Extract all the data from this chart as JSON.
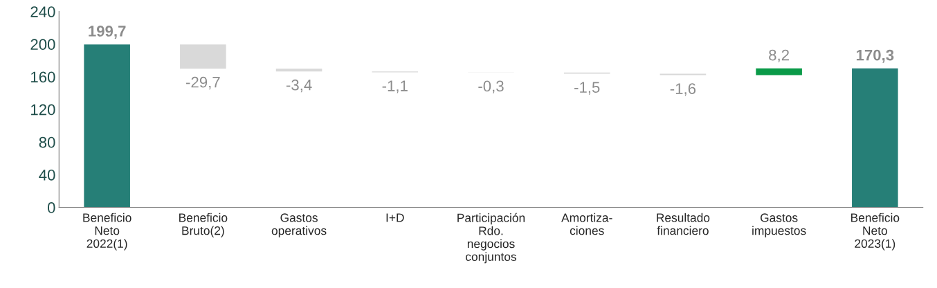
{
  "chart_data": {
    "type": "bar",
    "categories": [
      "Beneficio\nNeto\n2022(1)",
      "Beneficio\nBruto(2)",
      "Gastos\noperativos",
      "I+D",
      "Participación\nRdo.\nnegocios\nconjuntos",
      "Amortiza-\nciones",
      "Resultado\nfinanciero",
      "Gastos\nimpuestos",
      "Beneficio\nNeto\n2023(1)"
    ],
    "values": [
      199.7,
      -29.7,
      -3.4,
      -1.1,
      -0.3,
      -1.5,
      -1.6,
      8.2,
      170.3
    ],
    "base": [
      0,
      199.7,
      170.0,
      166.6,
      165.5,
      165.2,
      163.7,
      162.1,
      0
    ],
    "colors": [
      "#267f77",
      "#d9d9d9",
      "#d9d9d9",
      "#d9d9d9",
      "#d9d9d9",
      "#d9d9d9",
      "#d9d9d9",
      "#0a9a48",
      "#267f77"
    ],
    "value_labels": [
      "199,7",
      "-29,7",
      "-3,4",
      "-1,1",
      "-0,3",
      "-1,5",
      "-1,6",
      "8,2",
      "170,3"
    ],
    "ylim": [
      0,
      240
    ],
    "yticks": [
      0,
      40,
      80,
      120,
      160,
      200,
      240
    ],
    "grid": false
  }
}
